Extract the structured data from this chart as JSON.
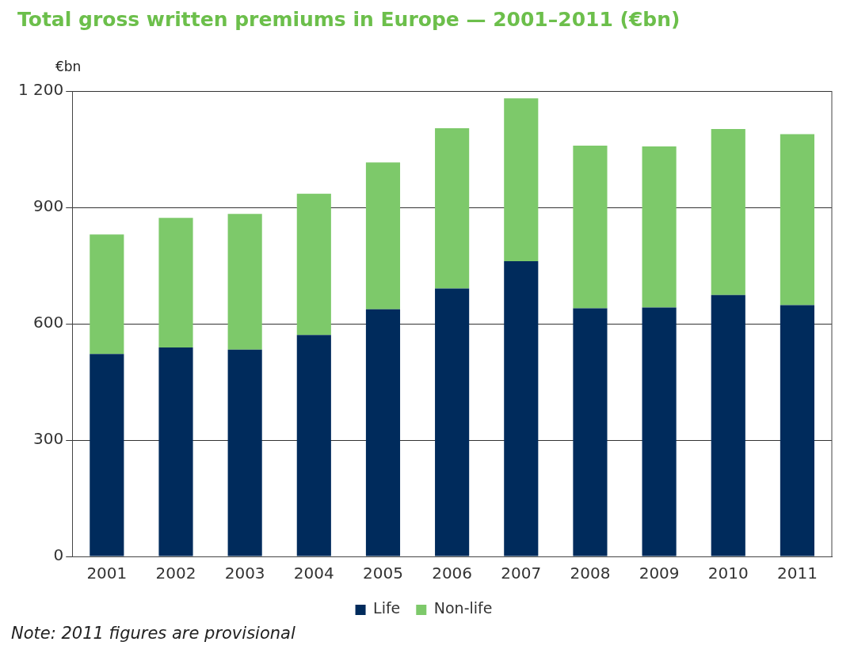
{
  "chart_data": {
    "type": "bar",
    "title": "Total gross written premiums in Europe — 2001–2011 (€bn)",
    "ylabel": "€bn",
    "categories": [
      "2001",
      "2002",
      "2003",
      "2004",
      "2005",
      "2006",
      "2007",
      "2008",
      "2009",
      "2010",
      "2011"
    ],
    "stacked": true,
    "series": [
      {
        "name": "Life",
        "color": "#002b5c",
        "values": [
          522,
          539,
          533,
          571,
          637,
          691,
          761,
          640,
          642,
          674,
          648
        ]
      },
      {
        "name": "Non-life",
        "color": "#7dc96a",
        "values": [
          308,
          334,
          350,
          364,
          379,
          413,
          420,
          419,
          415,
          428,
          441
        ]
      }
    ],
    "ylim": [
      0,
      1200
    ],
    "yticks": [
      0,
      300,
      600,
      900,
      {
        "value": 1200,
        "label": "1 200"
      }
    ],
    "grid": "y",
    "legend": "bottom",
    "annotations": [
      "Note: 2011 figures are provisional"
    ]
  }
}
